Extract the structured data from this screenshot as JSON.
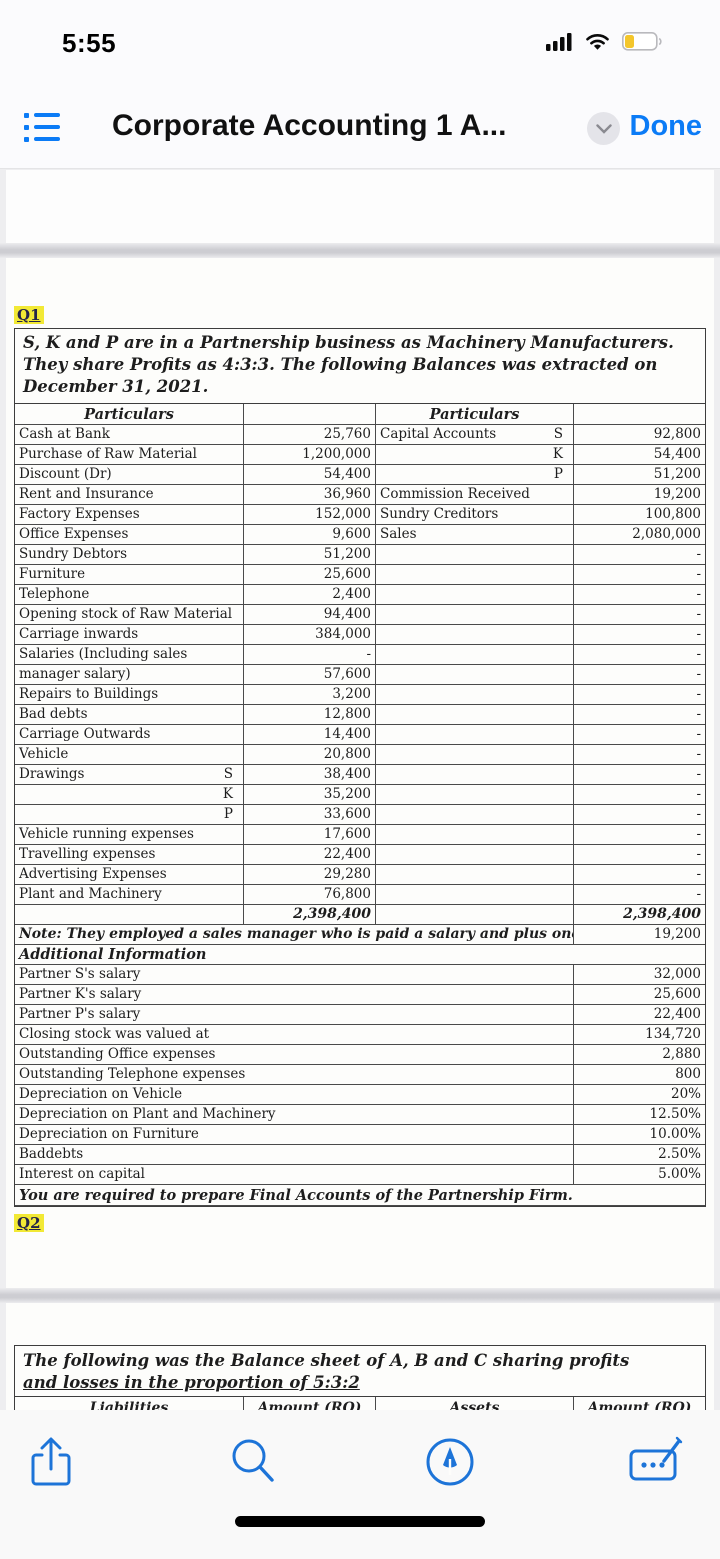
{
  "status_bar": {
    "time": "5:55",
    "icons": [
      "cellular-signal",
      "wifi",
      "battery-low"
    ]
  },
  "header": {
    "title": "Corporate Accounting 1 A...",
    "done_label": "Done"
  },
  "colors": {
    "accent_blue": "#0b7bf6",
    "highlight_yellow": "#f2e935",
    "home_indicator": "#000000"
  },
  "q1": {
    "tag": "Q1",
    "intro": "S, K and P are in a Partnership business as Machinery Manufacturers. They share Profits as 4:3:3. The following Balances was extracted on December 31, 2021.",
    "table": {
      "header_left": "Particulars",
      "header_right": "Particulars",
      "rows": [
        {
          "l": "Cash at Bank",
          "ls": "",
          "la": "25,760",
          "r": "Capital Accounts",
          "rs": "S",
          "ra": "92,800"
        },
        {
          "l": "Purchase of Raw Material",
          "ls": "",
          "la": "1,200,000",
          "r": "",
          "rs": "K",
          "ra": "54,400"
        },
        {
          "l": "Discount (Dr)",
          "ls": "",
          "la": "54,400",
          "r": "",
          "rs": "P",
          "ra": "51,200"
        },
        {
          "l": "Rent and Insurance",
          "ls": "",
          "la": "36,960",
          "r": "Commission Received",
          "rs": "",
          "ra": "19,200"
        },
        {
          "l": "Factory Expenses",
          "ls": "",
          "la": "152,000",
          "r": "Sundry Creditors",
          "rs": "",
          "ra": "100,800"
        },
        {
          "l": "Office Expenses",
          "ls": "",
          "la": "9,600",
          "r": "Sales",
          "rs": "",
          "ra": "2,080,000"
        },
        {
          "l": "Sundry Debtors",
          "ls": "",
          "la": "51,200",
          "r": "",
          "rs": "",
          "ra": "-"
        },
        {
          "l": "Furniture",
          "ls": "",
          "la": "25,600",
          "r": "",
          "rs": "",
          "ra": "-"
        },
        {
          "l": "Telephone",
          "ls": "",
          "la": "2,400",
          "r": "",
          "rs": "",
          "ra": "-"
        },
        {
          "l": "Opening stock of Raw Material",
          "ls": "",
          "la": "94,400",
          "r": "",
          "rs": "",
          "ra": "-"
        },
        {
          "l": "Carriage inwards",
          "ls": "",
          "la": "384,000",
          "r": "",
          "rs": "",
          "ra": "-"
        },
        {
          "l": "Salaries (Including sales",
          "ls": "",
          "la": "-",
          "r": "",
          "rs": "",
          "ra": "-",
          "merge": true
        },
        {
          "l": "manager salary)",
          "ls": "",
          "la": "57,600",
          "r": "",
          "rs": "",
          "ra": "-"
        },
        {
          "l": "Repairs to Buildings",
          "ls": "",
          "la": "3,200",
          "r": "",
          "rs": "",
          "ra": "-"
        },
        {
          "l": "Bad debts",
          "ls": "",
          "la": "12,800",
          "r": "",
          "rs": "",
          "ra": "-"
        },
        {
          "l": "Carriage Outwards",
          "ls": "",
          "la": "14,400",
          "r": "",
          "rs": "",
          "ra": "-"
        },
        {
          "l": "Vehicle",
          "ls": "",
          "la": "20,800",
          "r": "",
          "rs": "",
          "ra": "-"
        },
        {
          "l": "Drawings",
          "ls": "S",
          "la": "38,400",
          "r": "",
          "rs": "",
          "ra": "-"
        },
        {
          "l": "",
          "ls": "K",
          "la": "35,200",
          "r": "",
          "rs": "",
          "ra": "-"
        },
        {
          "l": "",
          "ls": "P",
          "la": "33,600",
          "r": "",
          "rs": "",
          "ra": "-"
        },
        {
          "l": "Vehicle running expenses",
          "ls": "",
          "la": "17,600",
          "r": "",
          "rs": "",
          "ra": "-"
        },
        {
          "l": "Travelling expenses",
          "ls": "",
          "la": "22,400",
          "r": "",
          "rs": "",
          "ra": "-"
        },
        {
          "l": "Advertising Expenses",
          "ls": "",
          "la": "29,280",
          "r": "",
          "rs": "",
          "ra": "-"
        },
        {
          "l": "Plant and Machinery",
          "ls": "",
          "la": "76,800",
          "r": "",
          "rs": "",
          "ra": "-"
        }
      ],
      "total_left": "2,398,400",
      "total_right": "2,398,400",
      "note_text": "Note: They employed a sales manager who is paid a salary and plus one percent commission on total sales.",
      "note_amount": "19,200",
      "additional_title": "Additional Information",
      "additional_rows": [
        {
          "label": "Partner S's salary",
          "value": "32,000"
        },
        {
          "label": "Partner K's salary",
          "value": "25,600"
        },
        {
          "label": "Partner P's salary",
          "value": "22,400"
        },
        {
          "label": "Closing stock was valued at",
          "value": "134,720"
        },
        {
          "label": "Outstanding Office expenses",
          "value": "2,880"
        },
        {
          "label": "Outstanding Telephone expenses",
          "value": "800"
        },
        {
          "label": "Depreciation on Vehicle",
          "value": "20%"
        },
        {
          "label": "Depreciation on Plant and Machinery",
          "value": "12.50%"
        },
        {
          "label": "Depreciation on Furniture",
          "value": "10.00%"
        },
        {
          "label": "Baddebts",
          "value": "2.50%"
        },
        {
          "label": "Interest on capital",
          "value": "5.00%"
        }
      ],
      "requirement": "You are required to prepare Final Accounts of the Partnership Firm."
    }
  },
  "q2": {
    "tag": "Q2",
    "intro_line1": "The following was the Balance sheet of A, B and C sharing profits",
    "intro_line2": "and losses in the proportion of 5:3:2",
    "partial_header": [
      "Liabilities",
      "Amount (RO)",
      "Assets",
      "Amount (RO)"
    ]
  },
  "toolbar": {
    "icons": [
      "share",
      "search",
      "annotate",
      "markup"
    ]
  }
}
